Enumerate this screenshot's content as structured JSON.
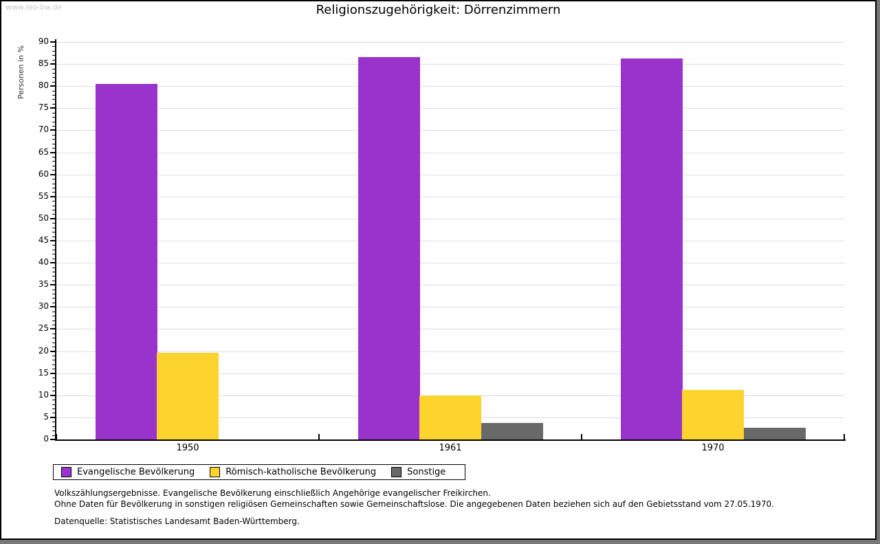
{
  "watermark": "www.leo-bw.de",
  "title": "Religionszugehörigkeit: Dörrenzimmern",
  "chart_data": {
    "type": "bar",
    "title": "Religionszugehörigkeit: Dörrenzimmern",
    "xlabel": "",
    "ylabel": "Personen in %",
    "categories": [
      "1950",
      "1961",
      "1970"
    ],
    "series": [
      {
        "name": "Evangelische Bevölkerung",
        "color": "#9933cc",
        "values": [
          80.5,
          86.5,
          86.2
        ]
      },
      {
        "name": "Römisch-katholische Bevölkerung",
        "color": "#fdd42e",
        "values": [
          19.6,
          10.0,
          11.2
        ]
      },
      {
        "name": "Sonstige",
        "color": "#696969",
        "values": [
          0.0,
          3.8,
          2.7
        ]
      }
    ],
    "ylim": [
      0,
      90
    ],
    "ytick_step": 5,
    "minor_tick_step": 1,
    "grid": true,
    "gridline_color": "#dcdcdc",
    "legend_position": "bottom",
    "unit": "%"
  },
  "footer": {
    "line1": "Volkszählungsergebnisse. Evangelische Bevölkerung einschließlich Angehörige evangelischer Freikirchen.",
    "line2": "Ohne Daten für Bevölkerung in sonstigen religiösen Gemeinschaften sowie Gemeinschaftslose. Die angegebenen Daten beziehen sich auf den Gebietsstand vom 27.05.1970.",
    "source": "Datenquelle: Statistisches Landesamt Baden-Württemberg."
  }
}
